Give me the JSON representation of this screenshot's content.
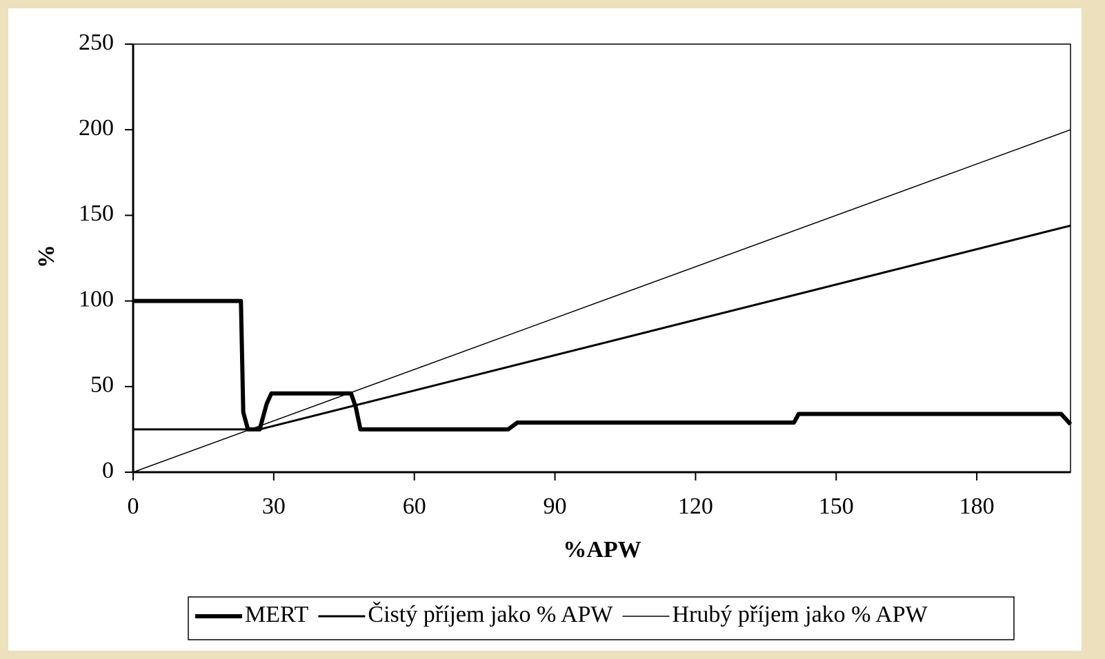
{
  "chart_data": {
    "type": "line",
    "x_label": "%APW",
    "y_label": "%",
    "xlim": [
      0,
      200
    ],
    "xticks": [
      0,
      30,
      60,
      90,
      120,
      150,
      180
    ],
    "ylim": [
      0,
      250
    ],
    "yticks": [
      0,
      50,
      100,
      150,
      200,
      250
    ],
    "grid": false,
    "legend": "bottom",
    "series": [
      {
        "name": "MERT",
        "color": "#000000",
        "width": 6,
        "x": [
          0,
          23,
          23.5,
          24.5,
          27,
          28.5,
          29.5,
          46.5,
          47.5,
          48.5,
          80,
          82,
          141,
          142,
          198,
          200
        ],
        "values": [
          100,
          100,
          35,
          25,
          25,
          40,
          46,
          46,
          38,
          25,
          25,
          29,
          29,
          34,
          34,
          28
        ]
      },
      {
        "name": "Čistý příjem jako % APW",
        "color": "#000000",
        "width": 3,
        "x": [
          0,
          27,
          200
        ],
        "values": [
          25,
          25,
          144
        ]
      },
      {
        "name": "Hrubý příjem jako % APW",
        "color": "#000000",
        "width": 1.5,
        "x": [
          0,
          200
        ],
        "values": [
          0,
          200
        ]
      }
    ]
  }
}
